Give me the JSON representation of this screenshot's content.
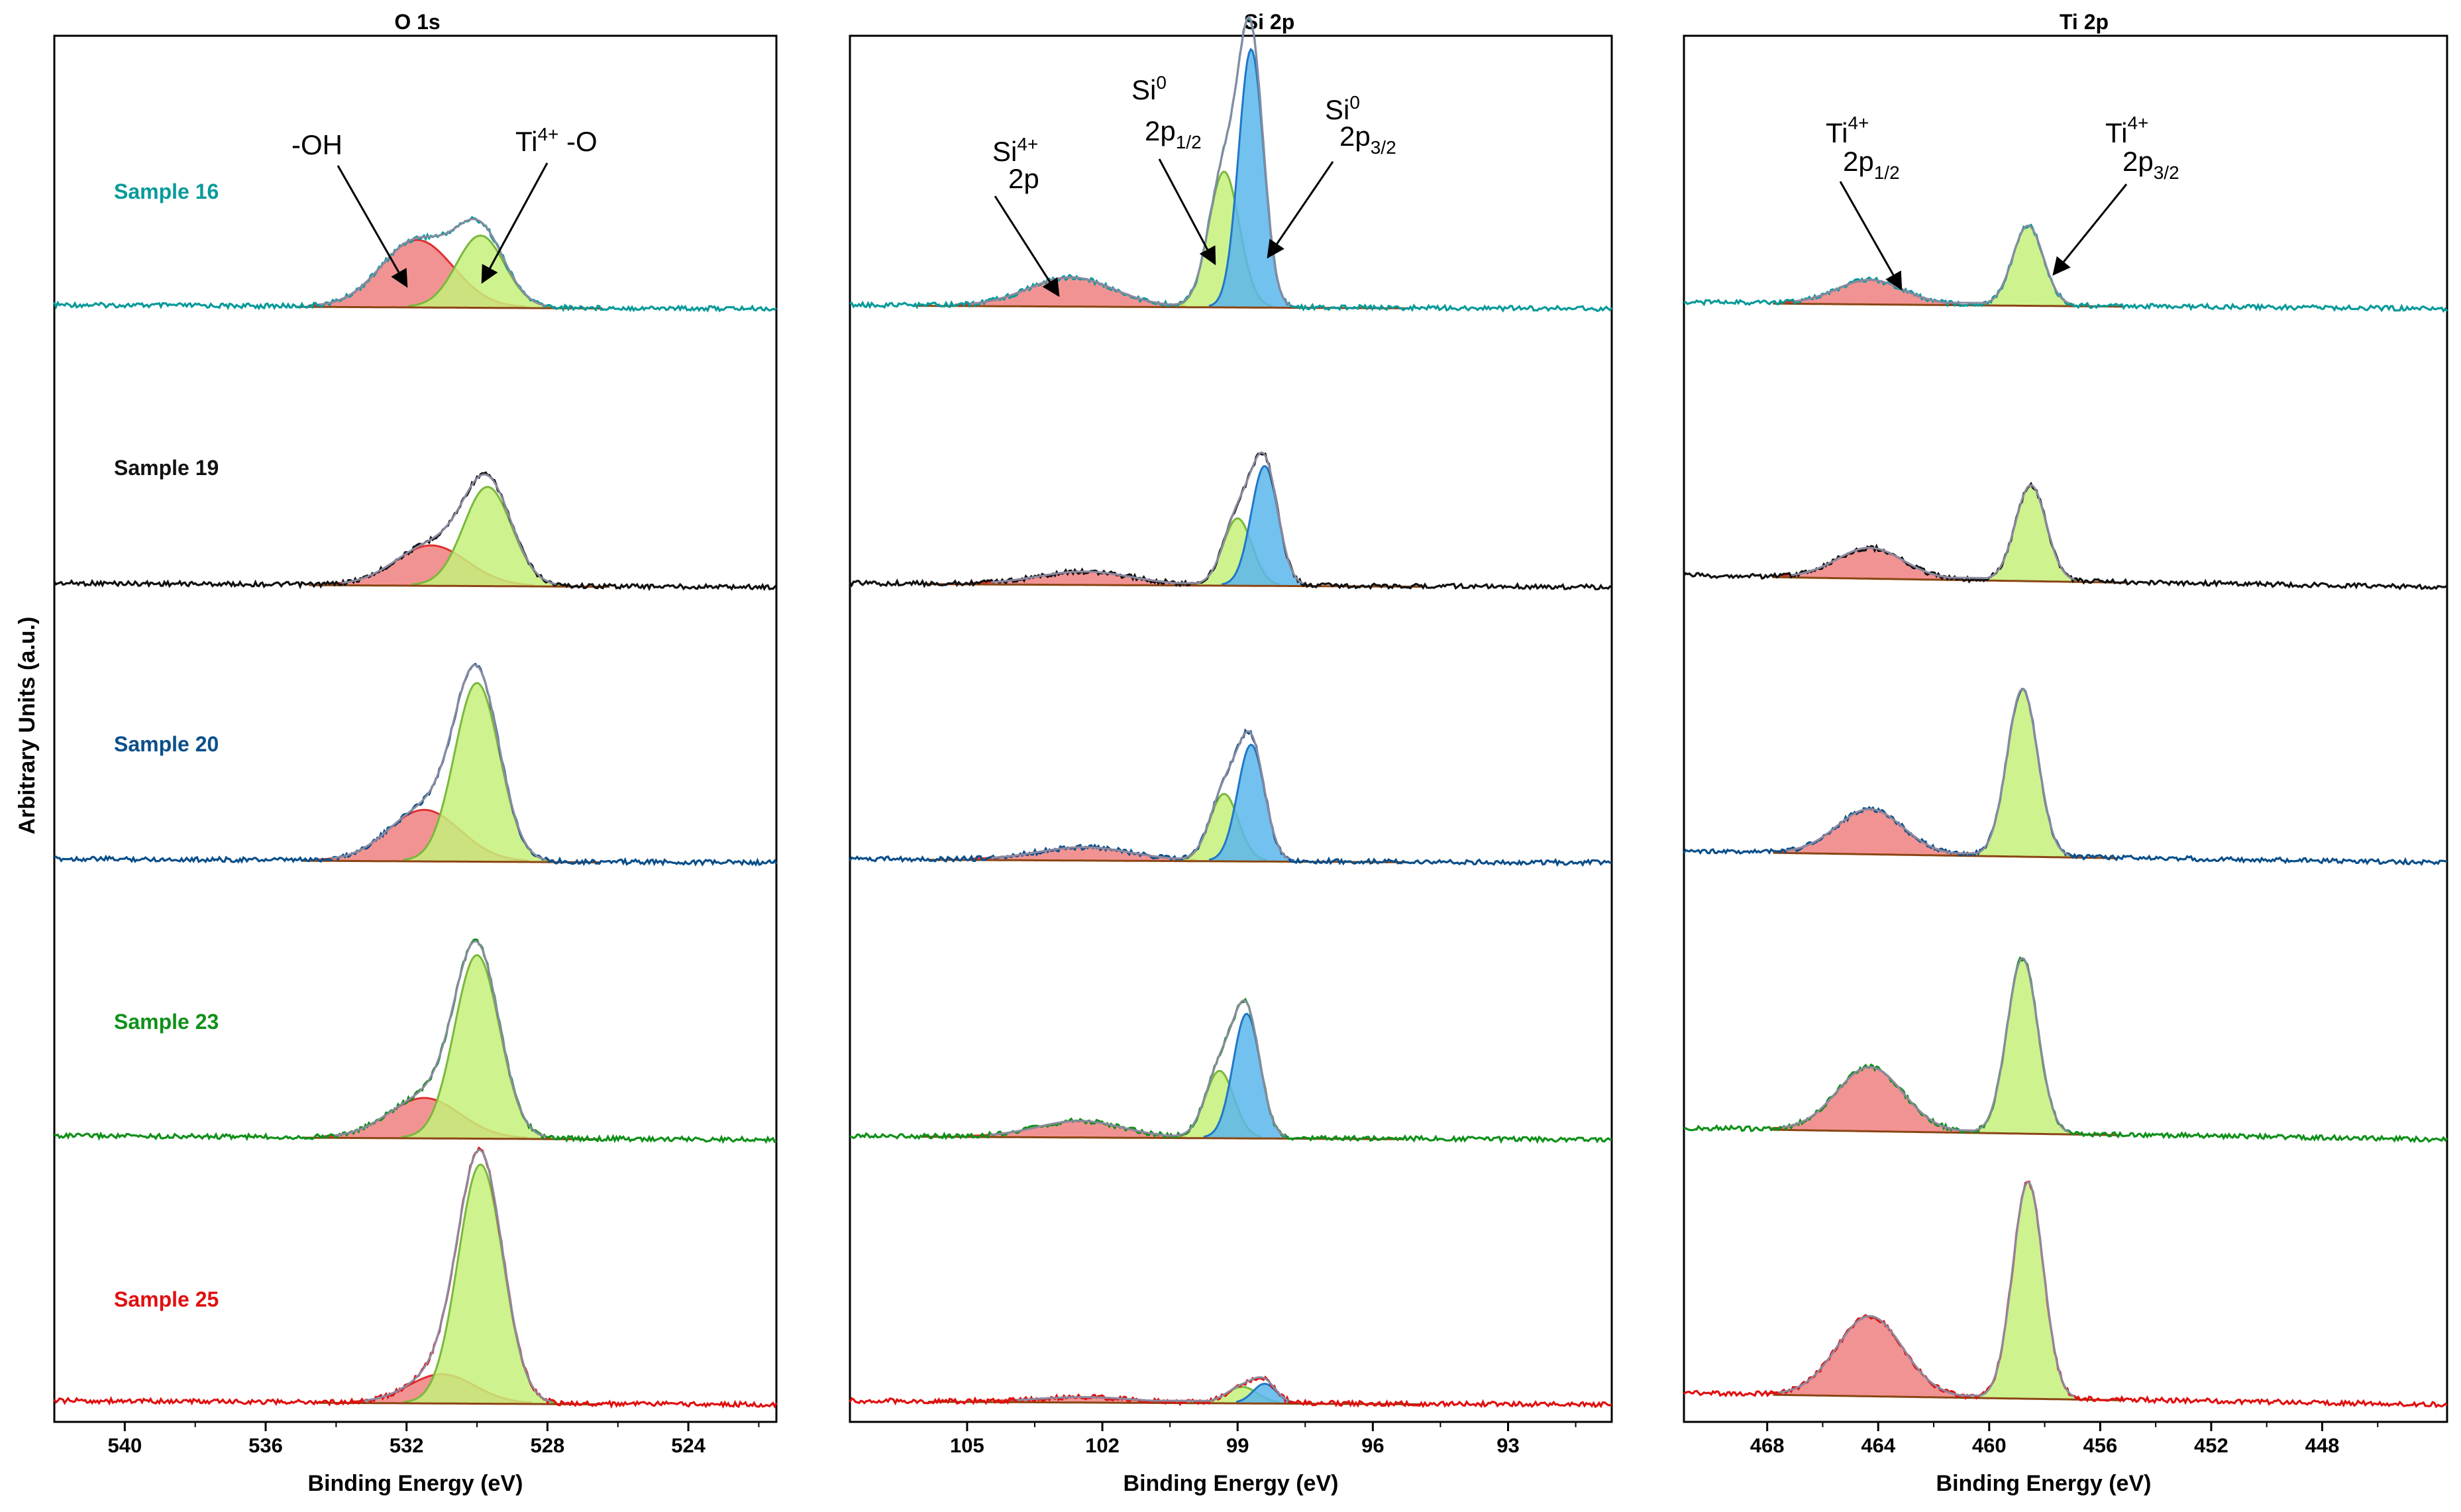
{
  "ylabel": "Arbitrary Units (a.u.)",
  "colors": {
    "oh_fill": "#f08080",
    "oh_line": "#e03030",
    "ti_o_fill": "#c6f07a",
    "ti_o_line": "#7ab83c",
    "si0_32_fill": "#5bb6ec",
    "si0_32_line": "#1f78c8",
    "envelope": "#8a8aa0",
    "baseline": "#8b4513"
  },
  "chart_data": [
    {
      "type": "line",
      "title": "O 1s",
      "xlabel": "Binding Energy (eV)",
      "xlim": [
        542,
        521.5
      ],
      "xticks": [
        540,
        536,
        532,
        528,
        524
      ],
      "xtick_labels": [
        "540",
        "536",
        "532",
        "528",
        "524"
      ],
      "components": [
        {
          "name": "-OH",
          "center": 531.6
        },
        {
          "name": "Ti4+ -O",
          "center": 529.8
        }
      ],
      "samples": [
        {
          "name": "Sample 16",
          "color": "#0a9a9a",
          "peaks": [
            {
              "component": "-OH",
              "center": 531.7,
              "height": 0.42,
              "fwhm": 2.4
            },
            {
              "component": "Ti4+ -O",
              "center": 529.9,
              "height": 0.45,
              "fwhm": 1.6
            }
          ]
        },
        {
          "name": "Sample 19",
          "color": "#111111",
          "peaks": [
            {
              "component": "-OH",
              "center": 531.3,
              "height": 0.25,
              "fwhm": 2.4
            },
            {
              "component": "Ti4+ -O",
              "center": 529.7,
              "height": 0.62,
              "fwhm": 1.6
            }
          ]
        },
        {
          "name": "Sample 20",
          "color": "#0b4f8a",
          "peaks": [
            {
              "component": "-OH",
              "center": 531.5,
              "height": 0.32,
              "fwhm": 2.4
            },
            {
              "component": "Ti4+ -O",
              "center": 530.0,
              "height": 1.12,
              "fwhm": 1.5
            }
          ]
        },
        {
          "name": "Sample 23",
          "color": "#10901a",
          "peaks": [
            {
              "component": "-OH",
              "center": 531.5,
              "height": 0.25,
              "fwhm": 2.4
            },
            {
              "component": "Ti4+ -O",
              "center": 530.0,
              "height": 1.15,
              "fwhm": 1.5
            }
          ]
        },
        {
          "name": "Sample 25",
          "color": "#e01010",
          "peaks": [
            {
              "component": "-OH",
              "center": 531.0,
              "height": 0.18,
              "fwhm": 2.2
            },
            {
              "component": "Ti4+ -O",
              "center": 529.9,
              "height": 1.5,
              "fwhm": 1.5
            }
          ]
        }
      ]
    },
    {
      "type": "line",
      "title": "Si 2p",
      "xlabel": "Binding Energy (eV)",
      "xlim": [
        107.6,
        90.7
      ],
      "xticks": [
        105,
        102,
        99,
        96,
        93
      ],
      "xtick_labels": [
        "105",
        "102",
        "99",
        "96",
        "93"
      ],
      "components": [
        {
          "name": "Si4+ 2p",
          "center": 102.6
        },
        {
          "name": "Si0 2p1/2",
          "center": 99.3
        },
        {
          "name": "Si0 2p3/2",
          "center": 98.7
        }
      ],
      "samples": [
        {
          "name": "Sample 16",
          "peaks": [
            {
              "component": "Si4+ 2p",
              "center": 102.7,
              "height": 0.18,
              "fwhm": 2.2
            },
            {
              "component": "Si0 2p1/2",
              "center": 99.3,
              "height": 0.85,
              "fwhm": 0.8
            },
            {
              "component": "Si0 2p3/2",
              "center": 98.7,
              "height": 1.62,
              "fwhm": 0.65
            }
          ]
        },
        {
          "name": "Sample 19",
          "peaks": [
            {
              "component": "Si4+ 2p",
              "center": 102.4,
              "height": 0.08,
              "fwhm": 2.4
            },
            {
              "component": "Si0 2p1/2",
              "center": 99.0,
              "height": 0.42,
              "fwhm": 0.75
            },
            {
              "component": "Si0 2p3/2",
              "center": 98.4,
              "height": 0.75,
              "fwhm": 0.7
            }
          ]
        },
        {
          "name": "Sample 20",
          "peaks": [
            {
              "component": "Si4+ 2p",
              "center": 102.4,
              "height": 0.08,
              "fwhm": 2.4
            },
            {
              "component": "Si0 2p1/2",
              "center": 99.3,
              "height": 0.42,
              "fwhm": 0.75
            },
            {
              "component": "Si0 2p3/2",
              "center": 98.7,
              "height": 0.73,
              "fwhm": 0.7
            }
          ]
        },
        {
          "name": "Sample 23",
          "peaks": [
            {
              "component": "Si4+ 2p",
              "center": 102.5,
              "height": 0.1,
              "fwhm": 2.2
            },
            {
              "component": "Si0 2p1/2",
              "center": 99.4,
              "height": 0.42,
              "fwhm": 0.75
            },
            {
              "component": "Si0 2p3/2",
              "center": 98.8,
              "height": 0.78,
              "fwhm": 0.7
            }
          ]
        },
        {
          "name": "Sample 25",
          "peaks": [
            {
              "component": "Si4+ 2p",
              "center": 102.4,
              "height": 0.03,
              "fwhm": 2.4
            },
            {
              "component": "Si0 2p1/2",
              "center": 98.9,
              "height": 0.1,
              "fwhm": 0.8
            },
            {
              "component": "Si0 2p3/2",
              "center": 98.4,
              "height": 0.12,
              "fwhm": 0.6
            }
          ]
        }
      ]
    },
    {
      "type": "line",
      "title": "Ti 2p",
      "xlabel": "Binding Energy (eV)",
      "xlim": [
        471,
        443.5
      ],
      "xticks": [
        468,
        464,
        460,
        456,
        452,
        448
      ],
      "xtick_labels": [
        "468",
        "464",
        "460",
        "456",
        "452",
        "448"
      ],
      "components": [
        {
          "name": "Ti4+ 2p1/2",
          "center": 464.3
        },
        {
          "name": "Ti4+ 2p3/2",
          "center": 458.6
        }
      ],
      "samples": [
        {
          "name": "Sample 16",
          "peaks": [
            {
              "component": "Ti4+ 2p1/2",
              "center": 464.3,
              "height": 0.15,
              "fwhm": 2.8
            },
            {
              "component": "Ti4+ 2p3/2",
              "center": 458.6,
              "height": 0.5,
              "fwhm": 1.3
            }
          ]
        },
        {
          "name": "Sample 19",
          "peaks": [
            {
              "component": "Ti4+ 2p1/2",
              "center": 464.3,
              "height": 0.19,
              "fwhm": 2.8
            },
            {
              "component": "Ti4+ 2p3/2",
              "center": 458.5,
              "height": 0.6,
              "fwhm": 1.3
            }
          ]
        },
        {
          "name": "Sample 20",
          "peaks": [
            {
              "component": "Ti4+ 2p1/2",
              "center": 464.3,
              "height": 0.28,
              "fwhm": 2.8
            },
            {
              "component": "Ti4+ 2p3/2",
              "center": 458.8,
              "height": 1.05,
              "fwhm": 1.3
            }
          ]
        },
        {
          "name": "Sample 23",
          "peaks": [
            {
              "component": "Ti4+ 2p1/2",
              "center": 464.3,
              "height": 0.4,
              "fwhm": 2.8
            },
            {
              "component": "Ti4+ 2p3/2",
              "center": 458.8,
              "height": 1.1,
              "fwhm": 1.3
            }
          ]
        },
        {
          "name": "Sample 25",
          "peaks": [
            {
              "component": "Ti4+ 2p1/2",
              "center": 464.3,
              "height": 0.5,
              "fwhm": 2.8
            },
            {
              "component": "Ti4+ 2p3/2",
              "center": 458.6,
              "height": 1.36,
              "fwhm": 1.3
            }
          ]
        }
      ]
    }
  ],
  "annotations": {
    "oh": "-OH",
    "ti_o_main": "Ti",
    "ti_o_sup": "4+",
    "ti_o_tail": " -O",
    "si4_main": "Si",
    "si4_sup": "4+",
    "si4_line2": "2p",
    "si0_half_main": "Si",
    "si0_half_sup": "0",
    "si0_half_line2": "2p",
    "si0_half_sub": "1/2",
    "si0_32_main": "Si",
    "si0_32_sup": "0",
    "si0_32_line2": "2p",
    "si0_32_sub": "3/2",
    "ti_half_main": "Ti",
    "ti_half_sup": "4+",
    "ti_half_line2": "2p",
    "ti_half_sub": "1/2",
    "ti_32_main": "Ti",
    "ti_32_sup": "4+",
    "ti_32_line2": "2p",
    "ti_32_sub": "3/2"
  }
}
